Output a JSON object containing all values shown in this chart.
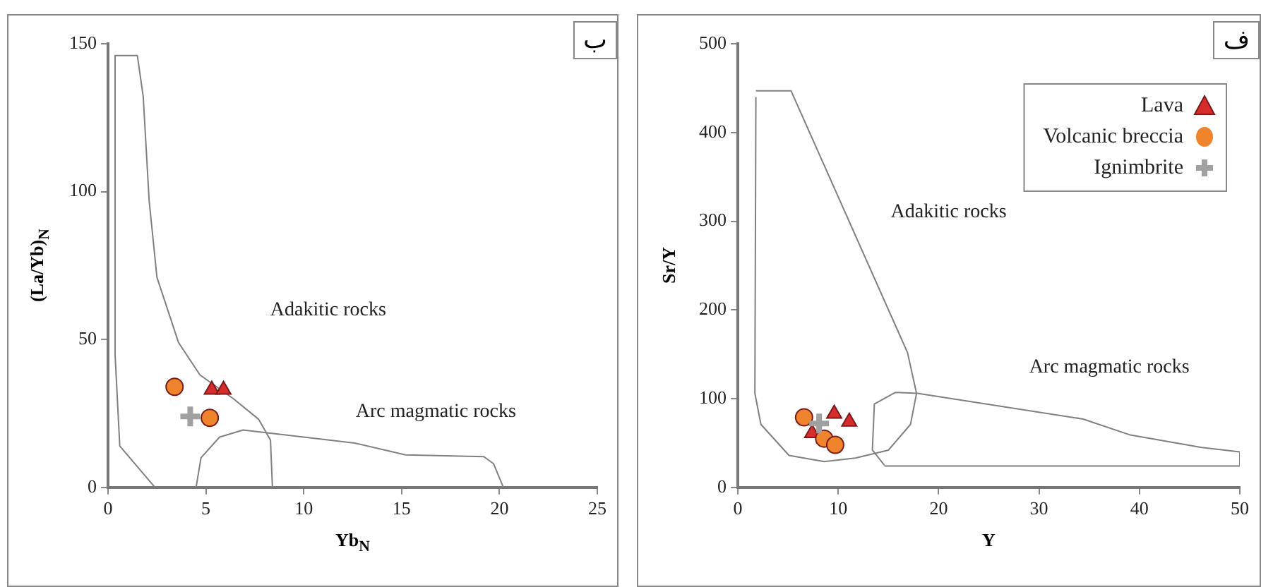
{
  "chart_data": [
    {
      "type": "scatter",
      "title": "ب",
      "xlabel": "Yb$_{N}$",
      "ylabel": "(La/Yb)$_{N}$",
      "xlim": [
        0,
        25
      ],
      "xticks": [
        0,
        5,
        10,
        15,
        20,
        25
      ],
      "ylim": [
        0,
        150
      ],
      "yticks": [
        0,
        50,
        100,
        150
      ],
      "grid": false,
      "legend": false,
      "annotations": [
        "Adakitic rocks",
        "Arc magmatic rocks"
      ],
      "series": [
        {
          "color": "#d62c2c",
          "marker": "triangle",
          "x": [
            5.3,
            5.9
          ],
          "values": [
            33,
            33
          ]
        },
        {
          "color": "#f0842c",
          "marker": "circle",
          "x": [
            3.4,
            5.2
          ],
          "values": [
            34,
            23.5
          ]
        },
        {
          "color": "#a0a0a0",
          "marker": "cross",
          "x": [
            4.2
          ],
          "values": [
            24
          ]
        },
        {
          "type": "line",
          "color": "#808080",
          "marker": "none",
          "x": [
            2.4,
            0.6,
            0.36,
            0.36,
            1.5,
            1.8,
            2.1,
            2.5,
            3.6,
            4.7,
            6.4,
            7.7,
            8.3,
            8.4
          ],
          "values": [
            0,
            14,
            45,
            146,
            146,
            132,
            97,
            71,
            49,
            38,
            30,
            23,
            16,
            0
          ]
        },
        {
          "type": "line",
          "color": "#808080",
          "marker": "none",
          "x": [
            4.5,
            4.75,
            5.7,
            6.9,
            10,
            12.6,
            15.2,
            19.2,
            19.7,
            20.2
          ],
          "values": [
            0,
            10,
            17,
            19.4,
            17,
            15,
            11,
            10.4,
            8,
            0
          ]
        }
      ]
    },
    {
      "type": "scatter",
      "title": "ف",
      "xlabel": "Y",
      "ylabel": "Sr/Y",
      "xlim": [
        0,
        50
      ],
      "xticks": [
        0,
        10,
        20,
        30,
        40,
        50
      ],
      "ylim": [
        0,
        500
      ],
      "yticks": [
        0,
        100,
        200,
        300,
        400,
        500
      ],
      "grid": false,
      "legend": "top right",
      "annotations": [
        "Adakitic rocks",
        "Arc magmatic rocks"
      ],
      "series": [
        {
          "name": "Lava",
          "color": "#d62c2c",
          "marker": "triangle",
          "x": [
            7.4,
            9.6,
            11.1
          ],
          "values": [
            61,
            83,
            74
          ]
        },
        {
          "name": "Volcanic breccia",
          "color": "#f0842c",
          "marker": "circle",
          "x": [
            6.6,
            8.6,
            9.7
          ],
          "values": [
            79,
            55,
            48
          ]
        },
        {
          "name": "Ignimbrite",
          "color": "#a0a0a0",
          "marker": "cross",
          "x": [
            8.1
          ],
          "values": [
            72
          ]
        },
        {
          "type": "line",
          "color": "#808080",
          "marker": "none",
          "x": [
            1.8,
            5.3,
            16.9,
            17.8,
            17.2,
            15,
            11.7,
            8.6,
            5.1,
            2.3,
            1.7,
            1.8
          ],
          "values": [
            447,
            447,
            152,
            106,
            71,
            42,
            33,
            29,
            36,
            71,
            106,
            440
          ]
        },
        {
          "type": "line",
          "color": "#808080",
          "marker": "none",
          "x": [
            14.6,
            13.4,
            13.6,
            15.7,
            17.9,
            34.4,
            39.1,
            46.2,
            50,
            50,
            14.6
          ],
          "values": [
            25,
            42,
            94,
            107,
            106,
            77,
            59,
            45,
            40,
            24,
            24
          ]
        }
      ]
    }
  ]
}
